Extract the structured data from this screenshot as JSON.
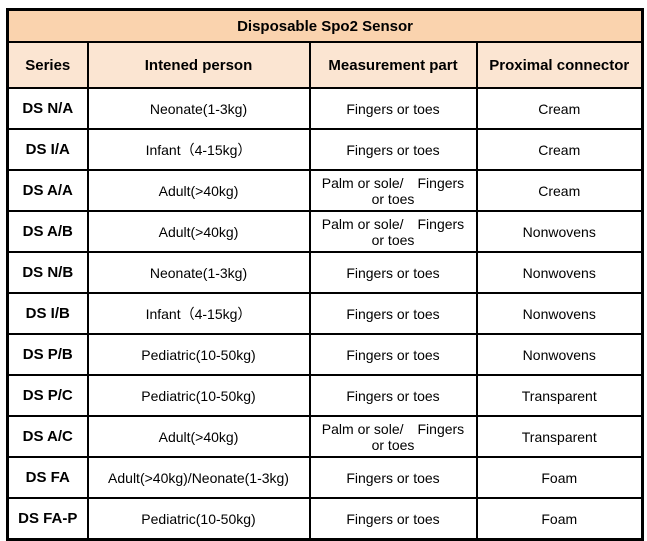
{
  "colors": {
    "title_bg": "#FAD3AE",
    "header_bg": "#FBE5D2",
    "border": "#000000",
    "text": "#000000",
    "row_bg": "#FFFFFF"
  },
  "table": {
    "title": "Disposable Spo2 Sensor",
    "columns": [
      "Series",
      "Intened person",
      "Measurement part",
      "Proximal connector"
    ],
    "rows": [
      {
        "series": "DS N/A",
        "person": "Neonate(1-3kg)",
        "part": "Fingers or toes",
        "connector": "Cream"
      },
      {
        "series": "DS I/A",
        "person": "Infant（4-15kg）",
        "part": "Fingers or toes",
        "connector": "Cream"
      },
      {
        "series": "DS A/A",
        "person": "Adult(>40kg)",
        "part": "Palm or sole/ Fingers\nor toes",
        "connector": "Cream"
      },
      {
        "series": "DS A/B",
        "person": "Adult(>40kg)",
        "part": "Palm or sole/ Fingers\nor toes",
        "connector": "Nonwovens"
      },
      {
        "series": "DS N/B",
        "person": "Neonate(1-3kg)",
        "part": "Fingers or toes",
        "connector": "Nonwovens"
      },
      {
        "series": "DS I/B",
        "person": "Infant（4-15kg）",
        "part": "Fingers or toes",
        "connector": "Nonwovens"
      },
      {
        "series": "DS P/B",
        "person": "Pediatric(10-50kg)",
        "part": "Fingers or toes",
        "connector": "Nonwovens"
      },
      {
        "series": "DS P/C",
        "person": "Pediatric(10-50kg)",
        "part": "Fingers or toes",
        "connector": "Transparent"
      },
      {
        "series": "DS A/C",
        "person": "Adult(>40kg)",
        "part": "Palm or sole/ Fingers\nor toes",
        "connector": "Transparent"
      },
      {
        "series": "DS FA",
        "person": "Adult(>40kg)/Neonate(1-3kg)",
        "part": "Fingers or toes",
        "connector": "Foam"
      },
      {
        "series": "DS FA-P",
        "person": "Pediatric(10-50kg)",
        "part": "Fingers or toes",
        "connector": "Foam"
      }
    ]
  }
}
